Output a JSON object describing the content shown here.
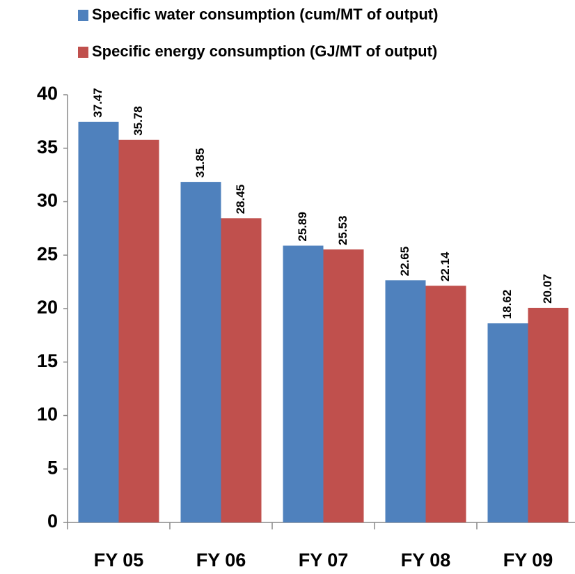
{
  "chart_data": {
    "type": "bar",
    "categories": [
      "FY 05",
      "FY 06",
      "FY 07",
      "FY 08",
      "FY 09"
    ],
    "series": [
      {
        "name": "Specific water consumption (cum/MT of output)",
        "color": "#4f81bd",
        "values": [
          37.47,
          31.85,
          25.89,
          22.65,
          18.62
        ]
      },
      {
        "name": "Specific energy consumption  (GJ/MT of output)",
        "color": "#c0504d",
        "values": [
          35.78,
          28.45,
          25.53,
          22.14,
          20.07
        ]
      }
    ],
    "ylim": [
      0,
      40
    ],
    "yticks": [
      0,
      5,
      10,
      15,
      20,
      25,
      30,
      35,
      40
    ],
    "grid": false,
    "legend": "top"
  }
}
